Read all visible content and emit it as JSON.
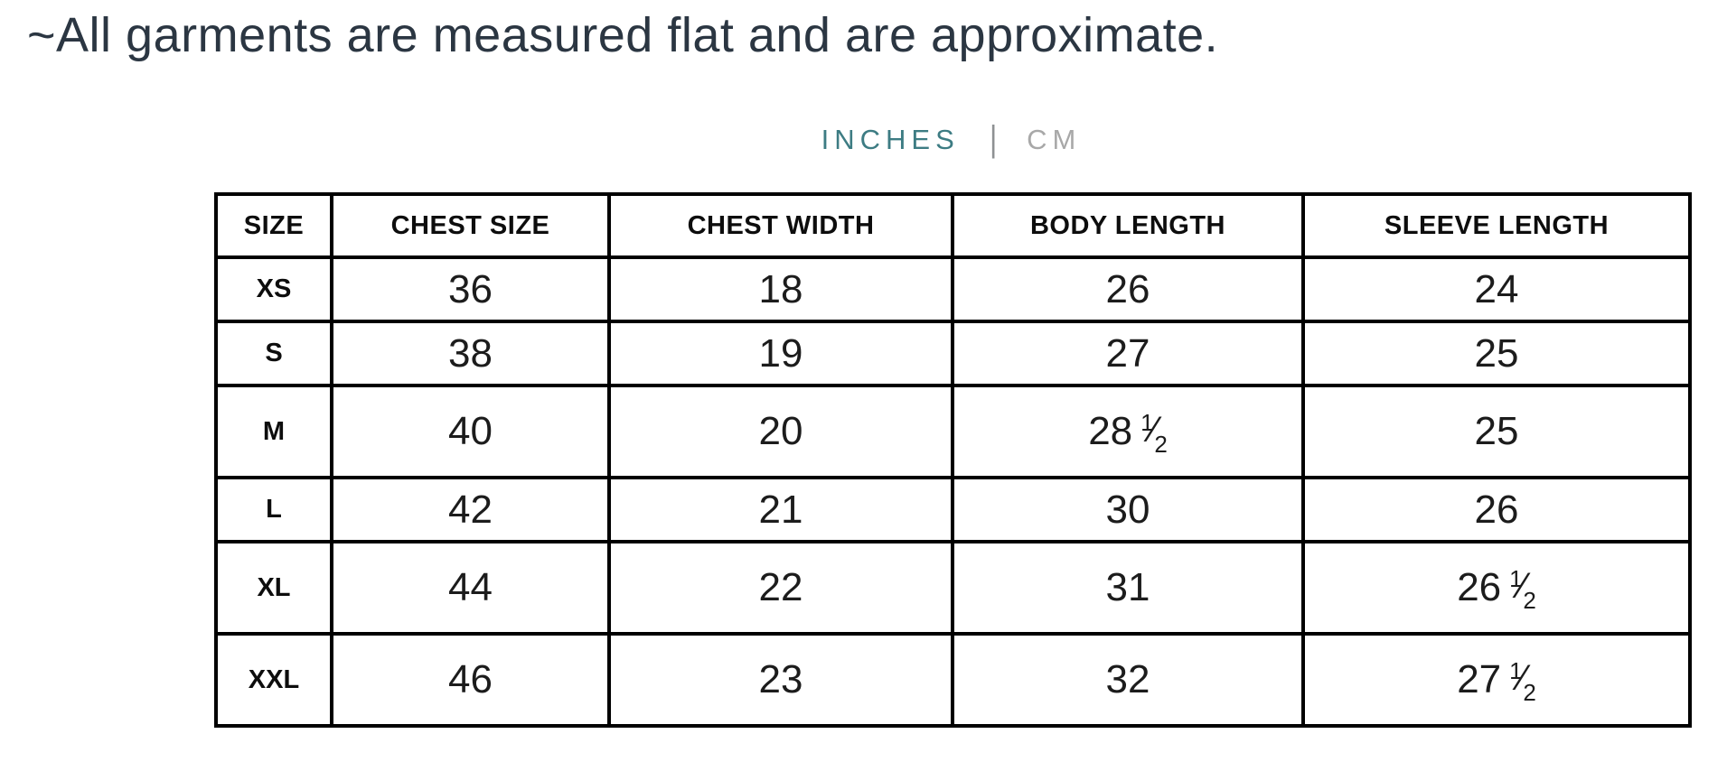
{
  "note": "~All garments are measured flat and are approximate.",
  "unit_toggle": {
    "inches_label": "INCHES",
    "separator": "|",
    "cm_label": "CM",
    "selected": "INCHES"
  },
  "colors": {
    "note_text": "#2b3642",
    "unit_active": "#3d7c83",
    "unit_inactive": "#a8a8a8",
    "unit_separator": "#8e9193",
    "table_border": "#000000",
    "table_text": "#1c1c1c"
  },
  "size_chart": {
    "headers": [
      "SIZE",
      "CHEST SIZE",
      "CHEST WIDTH",
      "BODY LENGTH",
      "SLEEVE LENGTH"
    ],
    "rows": [
      {
        "size": "XS",
        "values": [
          "36",
          "18",
          "26",
          "24"
        ]
      },
      {
        "size": "S",
        "values": [
          "38",
          "19",
          "27",
          "25"
        ]
      },
      {
        "size": "M",
        "values": [
          "40",
          "20",
          "28 ½",
          "25"
        ]
      },
      {
        "size": "L",
        "values": [
          "42",
          "21",
          "30",
          "26"
        ]
      },
      {
        "size": "XL",
        "values": [
          "44",
          "22",
          "31",
          "26 ½"
        ]
      },
      {
        "size": "XXL",
        "values": [
          "46",
          "23",
          "32",
          "27 ½"
        ]
      }
    ]
  }
}
